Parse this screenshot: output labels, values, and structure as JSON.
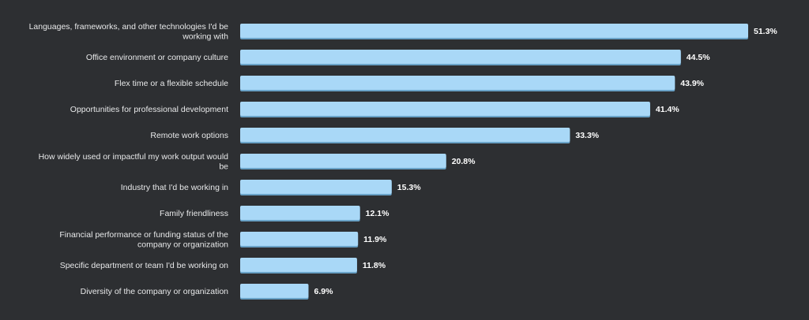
{
  "colors": {
    "background": "#2d2f32",
    "bar_fill": "#a9d8f7",
    "bar_shadow": "#6aa3c8",
    "label_text": "#e8e9ea",
    "value_text": "#ffffff"
  },
  "chart_data": {
    "type": "bar",
    "orientation": "horizontal",
    "categories": [
      "Languages, frameworks, and other technologies I'd be working with",
      "Office environment or company culture",
      "Flex time or a flexible schedule",
      "Opportunities for professional development",
      "Remote work options",
      "How widely used or impactful my work output would be",
      "Industry that I'd be working in",
      "Family friendliness",
      "Financial performance or funding status of the company or organization",
      "Specific department or team I'd be working on",
      "Diversity of the company or organization"
    ],
    "category_lines": [
      [
        "Languages, frameworks, and other technologies I'd be",
        "working with"
      ],
      [
        "Office environment or company culture"
      ],
      [
        "Flex time or a flexible schedule"
      ],
      [
        "Opportunities for professional development"
      ],
      [
        "Remote work options"
      ],
      [
        "How widely used or impactful my work output would",
        "be"
      ],
      [
        "Industry that I'd be working in"
      ],
      [
        "Family friendliness"
      ],
      [
        "Financial performance or funding status of the",
        "company or organization"
      ],
      [
        "Specific department or team I'd be working on"
      ],
      [
        "Diversity of the company or organization"
      ]
    ],
    "values": [
      51.3,
      44.5,
      43.9,
      41.4,
      33.3,
      20.8,
      15.3,
      12.1,
      11.9,
      11.8,
      6.9
    ],
    "value_labels": [
      "51.3%",
      "44.5%",
      "43.9%",
      "41.4%",
      "33.3%",
      "20.8%",
      "15.3%",
      "12.1%",
      "11.9%",
      "11.8%",
      "6.9%"
    ],
    "title": "",
    "xlabel": "",
    "ylabel": "",
    "xlim": [
      0,
      51.3
    ],
    "grid": false,
    "legend": "none"
  }
}
